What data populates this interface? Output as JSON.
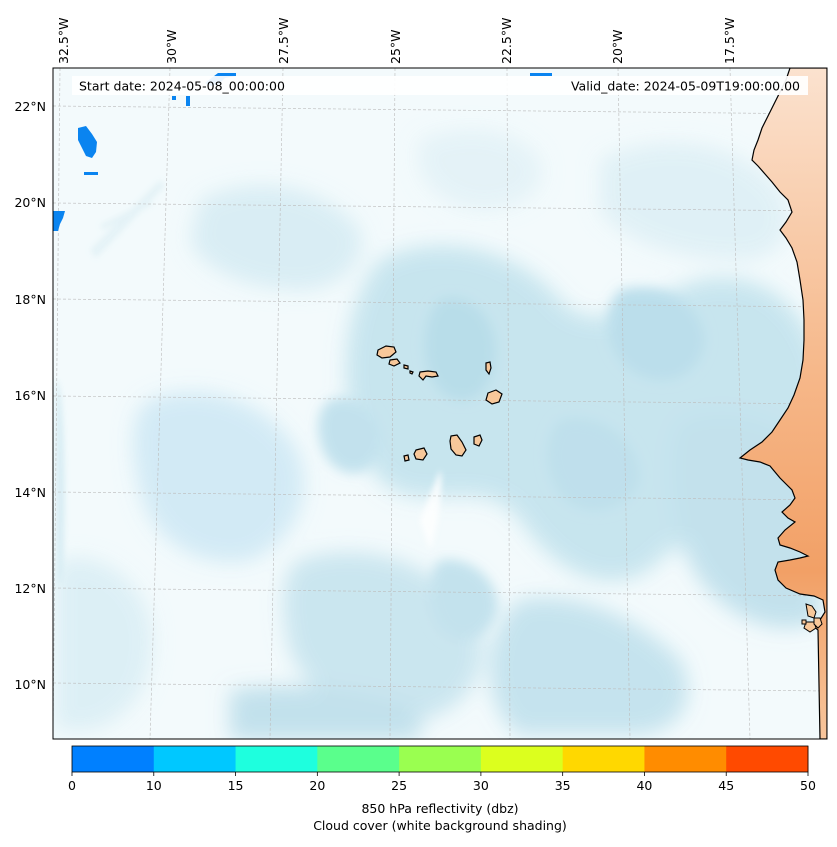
{
  "map": {
    "start_label": "Start date: 2024-05-08_00:00:00",
    "valid_label": "Valid_date: 2024-05-09T19:00:00.00",
    "lon_labels": [
      "32.5°W",
      "30°W",
      "27.5°W",
      "25°W",
      "22.5°W",
      "20°W",
      "17.5°W"
    ],
    "lat_labels": [
      "22°N",
      "20°N",
      "18°N",
      "16°N",
      "14°N",
      "12°N",
      "10°N"
    ],
    "colorbar": {
      "ticks": [
        "0",
        "10",
        "15",
        "20",
        "25",
        "30",
        "35",
        "40",
        "45",
        "50"
      ],
      "colors": [
        "#0080ff",
        "#00c8ff",
        "#1effde",
        "#5aff8c",
        "#9aff50",
        "#dcff1e",
        "#ffd800",
        "#ff8c00",
        "#ff4a00"
      ],
      "label_line1": "850 hPa reflectivity (dbz)",
      "label_line2": "Cloud cover (white background shading)"
    },
    "colors": {
      "land": "#f8c89a",
      "land_inland": "#f2a068",
      "cloud": "#a9d8e6",
      "coast": "#000000",
      "grid": "#bbbbbb"
    }
  }
}
